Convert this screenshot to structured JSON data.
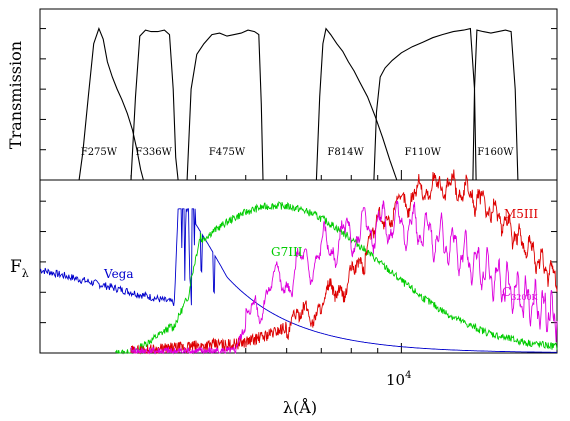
{
  "chart_data": [
    {
      "type": "line",
      "panel": "top",
      "ylabel": "Transmission",
      "xscale": "log",
      "xlim": [
        2000,
        20000
      ],
      "ylim": [
        0,
        1.05
      ],
      "series": [
        {
          "name": "F275W",
          "x": [
            2380,
            2420,
            2480,
            2540,
            2600,
            2650,
            2700,
            2760,
            2820,
            2880,
            2950,
            3020,
            3080,
            3130,
            3170
          ],
          "values": [
            0.0,
            0.18,
            0.55,
            0.9,
            1.0,
            0.93,
            0.78,
            0.68,
            0.6,
            0.53,
            0.44,
            0.33,
            0.2,
            0.07,
            0.0
          ]
        },
        {
          "name": "F336W",
          "x": [
            3000,
            3060,
            3120,
            3200,
            3280,
            3380,
            3480,
            3560,
            3620,
            3660,
            3700
          ],
          "values": [
            0.0,
            0.55,
            0.95,
            0.99,
            0.98,
            0.98,
            0.99,
            0.96,
            0.6,
            0.15,
            0.0
          ]
        },
        {
          "name": "F475W",
          "x": [
            3850,
            3920,
            4020,
            4150,
            4300,
            4450,
            4600,
            4750,
            4900,
            5050,
            5200,
            5300,
            5360,
            5400
          ],
          "values": [
            0.0,
            0.6,
            0.83,
            0.9,
            0.96,
            0.97,
            0.95,
            0.96,
            0.97,
            0.99,
            0.98,
            0.96,
            0.5,
            0.0
          ]
        },
        {
          "name": "F814W",
          "x": [
            6850,
            6950,
            7050,
            7150,
            7300,
            7500,
            7700,
            7900,
            8100,
            8300,
            8600,
            8900,
            9200,
            9500,
            9800
          ],
          "values": [
            0.0,
            0.55,
            0.9,
            1.0,
            0.96,
            0.9,
            0.85,
            0.78,
            0.72,
            0.65,
            0.55,
            0.42,
            0.28,
            0.13,
            0.0
          ]
        },
        {
          "name": "F110W",
          "x": [
            8850,
            8950,
            9100,
            9300,
            9600,
            10000,
            10500,
            11000,
            11500,
            12000,
            12600,
            13200,
            13600,
            13850,
            13950
          ],
          "values": [
            0.0,
            0.45,
            0.68,
            0.74,
            0.79,
            0.84,
            0.88,
            0.91,
            0.94,
            0.96,
            0.98,
            0.99,
            1.0,
            0.6,
            0.0
          ]
        },
        {
          "name": "F160W",
          "x": [
            13750,
            13850,
            14000,
            14400,
            14900,
            15400,
            15900,
            16300,
            16600,
            16800
          ],
          "values": [
            0.0,
            0.6,
            0.99,
            0.98,
            0.97,
            0.98,
            0.99,
            0.98,
            0.6,
            0.0
          ]
        }
      ],
      "labels": [
        {
          "text": "F275W",
          "x": 2600
        },
        {
          "text": "F336W",
          "x": 3320
        },
        {
          "text": "F475W",
          "x": 4600
        },
        {
          "text": "F814W",
          "x": 7800
        },
        {
          "text": "F110W",
          "x": 11000
        },
        {
          "text": "F160W",
          "x": 15200
        }
      ]
    },
    {
      "type": "line",
      "panel": "bottom",
      "xlabel": "λ(Å)",
      "ylabel": "Fλ",
      "xscale": "log",
      "xlim": [
        2000,
        20000
      ],
      "ylim": [
        0,
        1.1
      ],
      "xticks": [
        {
          "value": 10000,
          "label": "10⁴"
        }
      ],
      "series": [
        {
          "name": "Vega",
          "color": "#0000cc"
        },
        {
          "name": "G7III",
          "color": "#00cc00"
        },
        {
          "name": "M5III",
          "color": "#dd0000"
        },
        {
          "name": "C3200K",
          "color": "#dd00dd"
        }
      ]
    }
  ],
  "labels": {
    "top_ylabel": "Transmission",
    "bottom_ylabel_main": "F",
    "bottom_ylabel_sub": "λ",
    "xlabel": "λ(Å)",
    "xtick_10k_base": "10",
    "xtick_10k_exp": "4",
    "vega": "Vega",
    "g7iii": "G7III",
    "m5iii": "M5III",
    "c_main": "C",
    "c_sub": "3200K"
  },
  "colors": {
    "vega": "#0000cc",
    "g7iii": "#00cc00",
    "m5iii": "#dd0000",
    "c3200k": "#dd00dd"
  }
}
